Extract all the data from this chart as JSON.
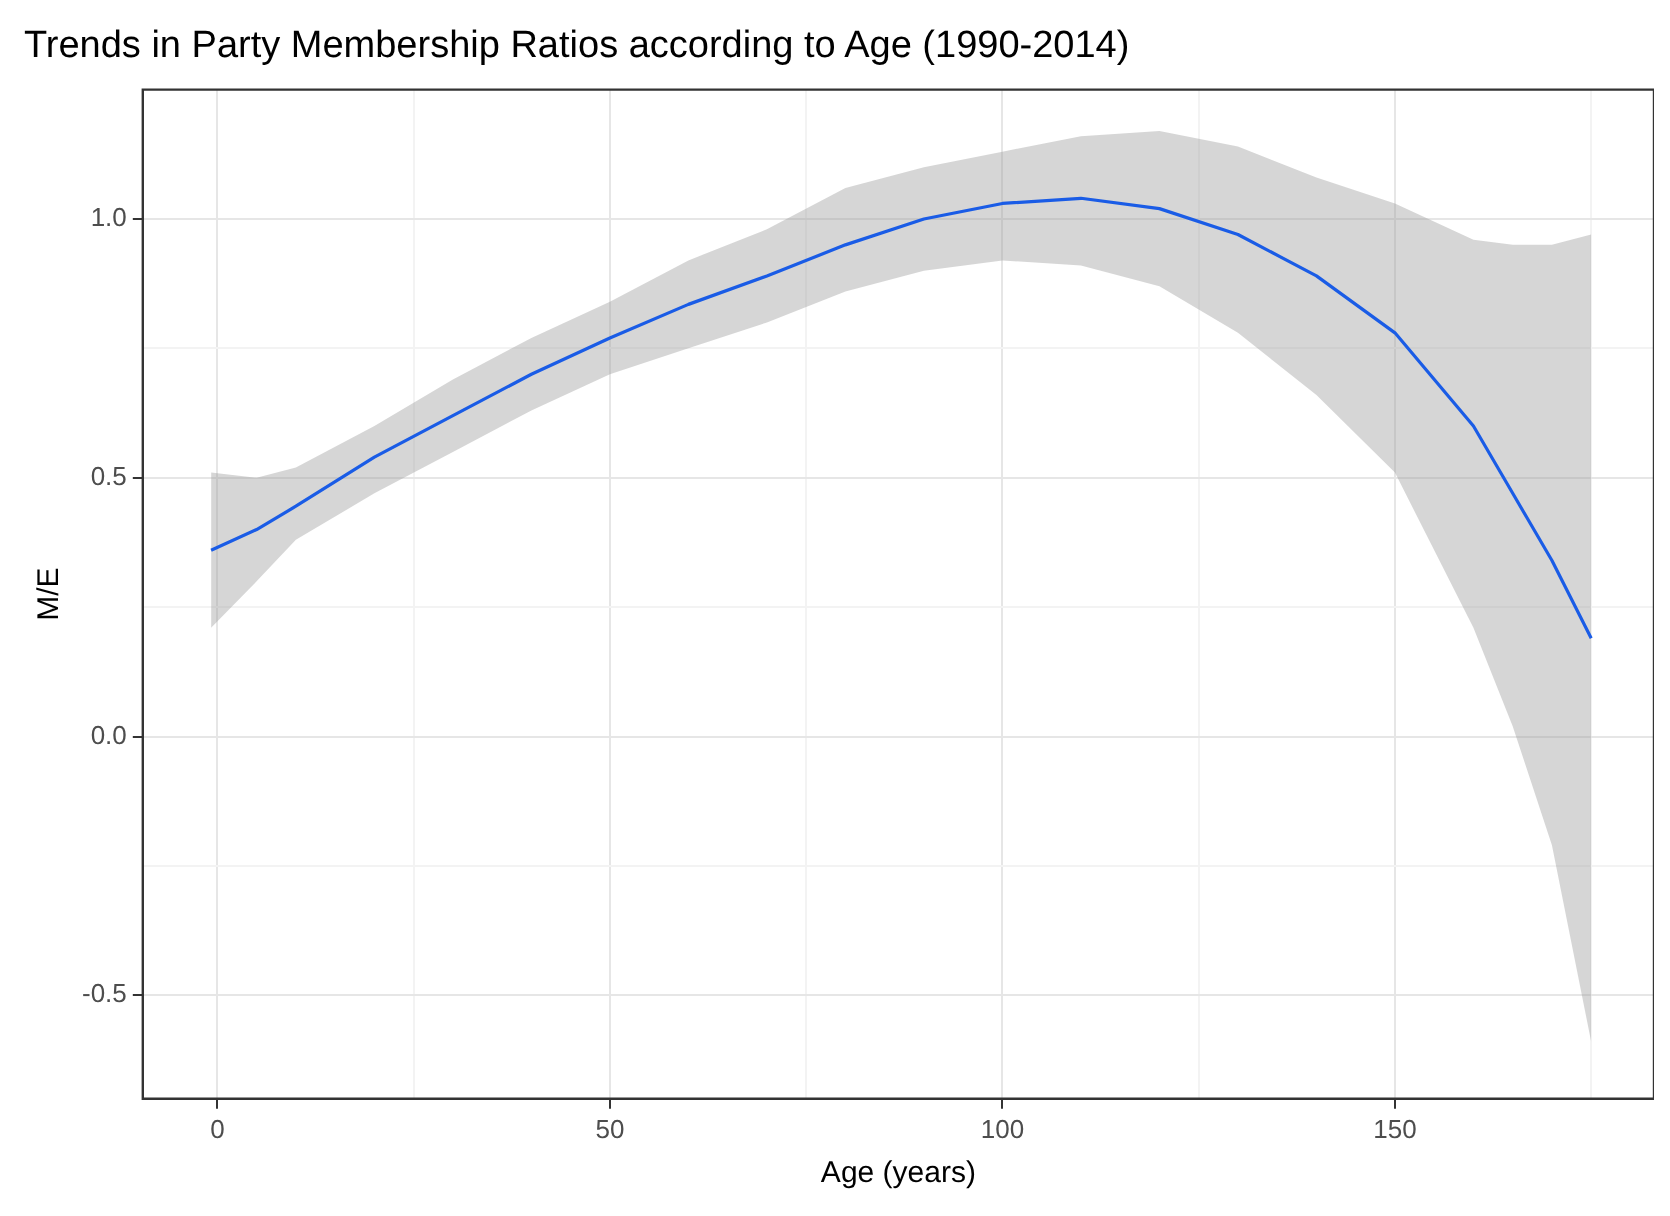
{
  "chart_data": {
    "type": "line",
    "title": "Trends in Party Membership Ratios according to Age (1990-2014)",
    "xlabel": "Age (years)",
    "ylabel": "M/E",
    "x": [
      -0.8,
      5,
      10,
      20,
      30,
      40,
      50,
      60,
      70,
      80,
      90,
      100,
      110,
      120,
      130,
      140,
      150,
      160,
      165,
      170,
      175
    ],
    "series": [
      {
        "color": "#1a5ce6",
        "values": [
          0.36,
          0.4,
          0.445,
          0.54,
          0.62,
          0.7,
          0.77,
          0.835,
          0.89,
          0.95,
          1.0,
          1.03,
          1.04,
          1.02,
          0.97,
          0.89,
          0.78,
          0.6,
          0.47,
          0.34,
          0.19
        ],
        "lower": [
          0.21,
          0.3,
          0.38,
          0.47,
          0.55,
          0.63,
          0.7,
          0.75,
          0.8,
          0.86,
          0.9,
          0.92,
          0.91,
          0.87,
          0.78,
          0.66,
          0.51,
          0.21,
          0.02,
          -0.21,
          -0.59
        ],
        "upper": [
          0.51,
          0.5,
          0.52,
          0.6,
          0.69,
          0.77,
          0.84,
          0.92,
          0.98,
          1.06,
          1.1,
          1.13,
          1.16,
          1.17,
          1.14,
          1.08,
          1.03,
          0.96,
          0.95,
          0.95,
          0.97
        ]
      }
    ],
    "xlim": [
      -9.5,
      183
    ],
    "ylim": [
      -0.7,
      1.25
    ],
    "xticks": [
      0,
      {
        "value": 25,
        "label": null
      },
      50,
      {
        "value": 75,
        "label": null
      },
      100,
      {
        "value": 125,
        "label": null
      },
      150,
      {
        "value": 175,
        "label": null
      }
    ],
    "yticks": [
      {
        "value": -0.5,
        "label": "-0.5"
      },
      {
        "value": -0.25,
        "label": null
      },
      {
        "value": 0,
        "label": "0.0"
      },
      {
        "value": 0.25,
        "label": null
      },
      {
        "value": 0.5,
        "label": "0.5"
      },
      {
        "value": 0.75,
        "label": null
      },
      {
        "value": 1,
        "label": "1.0"
      }
    ],
    "grid": true,
    "marker": "none",
    "line_style": "solid"
  }
}
